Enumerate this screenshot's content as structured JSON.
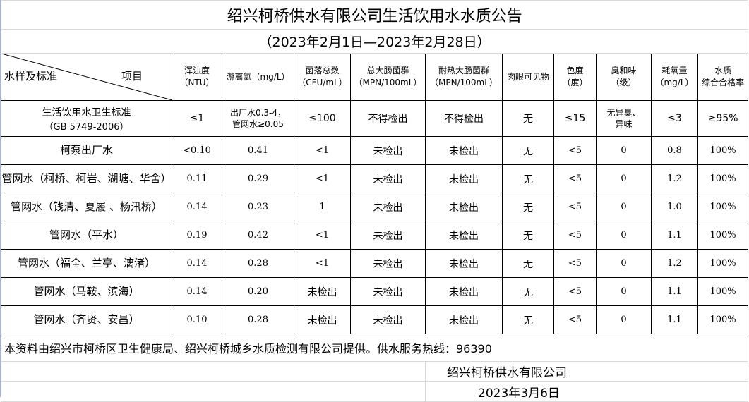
{
  "title": "绍兴柯桥供水有限公司生活饮用水水质公告",
  "period": "（2023年2月1日—2023年2月28日）",
  "header": {
    "corner_left": "水样及标准",
    "corner_right": "项目",
    "columns": [
      [
        "浑浊度",
        "（NTU）"
      ],
      [
        "游离氯（mg/L）"
      ],
      [
        "菌落总数",
        "（CFU/mL）"
      ],
      [
        "总大肠菌群",
        "（MPN/100mL）"
      ],
      [
        "耐热大肠菌群",
        "（MPN/100mL）"
      ],
      [
        "肉眼可见物"
      ],
      [
        "色度",
        "（度）"
      ],
      [
        "臭和味",
        "（级）"
      ],
      [
        "耗氧量",
        "（mg/L）"
      ],
      [
        "水质",
        "综合合格率"
      ]
    ]
  },
  "standard": {
    "name": [
      "生活饮用水卫生标准",
      "（GB 5749-2006）"
    ],
    "values": [
      "≤1",
      "出厂水0.3-4，\n管网水≥0.05",
      "≤100",
      "不得检出",
      "不得检出",
      "无",
      "≤15",
      "无异臭、\n异味",
      "≤3",
      "≥95%"
    ]
  },
  "rows": [
    {
      "name": "柯泵出厂水",
      "values": [
        "<0.10",
        "0.41",
        "<1",
        "未检出",
        "未检出",
        "无",
        "<5",
        "0",
        "0.8",
        "100%"
      ]
    },
    {
      "name": "管网水（柯桥、柯岩、湖塘、华舍）",
      "values": [
        "0.11",
        "0.29",
        "<1",
        "未检出",
        "未检出",
        "无",
        "<5",
        "0",
        "1.2",
        "100%"
      ]
    },
    {
      "name": "管网水（钱清、夏履 、杨汛桥）",
      "values": [
        "0.14",
        "0.23",
        "1",
        "未检出",
        "未检出",
        "无",
        "<5",
        "0",
        "1.0",
        "100%"
      ]
    },
    {
      "name": "管网水（平水）",
      "values": [
        "0.19",
        "0.42",
        "<1",
        "未检出",
        "未检出",
        "无",
        "<5",
        "0",
        "1.1",
        "100%"
      ]
    },
    {
      "name": "管网水（福全、兰亭、漓渚）",
      "values": [
        "0.14",
        "0.28",
        "<1",
        "未检出",
        "未检出",
        "无",
        "<5",
        "0",
        "1.2",
        "100%"
      ]
    },
    {
      "name": "管网水（马鞍、滨海）",
      "values": [
        "0.14",
        "0.20",
        "未检出",
        "未检出",
        "未检出",
        "无",
        "<5",
        "0",
        "1.1",
        "100%"
      ]
    },
    {
      "name": "管网水（齐贤、安昌）",
      "values": [
        "0.10",
        "0.28",
        "未检出",
        "未检出",
        "未检出",
        "无",
        "<5",
        "0",
        "1.1",
        "100%"
      ]
    }
  ],
  "footer": {
    "source": "本资料由绍兴市柯桥区卫生健康局、绍兴柯桥城乡水质检测有限公司提供。供水服务热线：96390",
    "company": "绍兴柯桥供水有限公司",
    "date": "2023年3月6日"
  }
}
